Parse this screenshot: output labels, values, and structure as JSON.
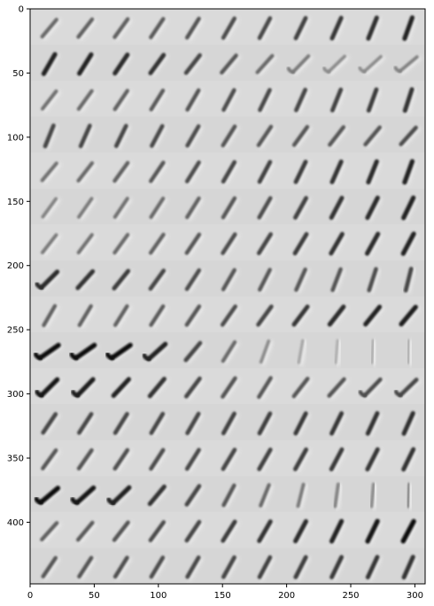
{
  "chart_data": {
    "type": "heatmap",
    "title": "",
    "xlabel": "",
    "ylabel": "",
    "xlim": [
      0,
      308
    ],
    "ylim": [
      448,
      0
    ],
    "y_axis_inverted": true,
    "x_ticks": [
      0,
      50,
      100,
      150,
      200,
      250,
      300
    ],
    "y_ticks": [
      0,
      50,
      100,
      150,
      200,
      250,
      300,
      350,
      400
    ],
    "grid": false,
    "legend": "none",
    "colormap": "gray",
    "background_color": "#d9d9d9",
    "tile_grid": {
      "rows": 16,
      "cols": 11,
      "tile_width": 28,
      "tile_height": 28
    },
    "rows": [
      {
        "dark": [
          0.5,
          0.55,
          0.55,
          0.58,
          0.62,
          0.65,
          0.68,
          0.72,
          0.78,
          0.82,
          0.88
        ],
        "tilt": [
          40,
          38,
          36,
          34,
          32,
          30,
          28,
          26,
          24,
          22,
          20
        ]
      },
      {
        "dark": [
          0.9,
          0.88,
          0.85,
          0.8,
          0.7,
          0.6,
          0.5,
          0.4,
          0.3,
          0.3,
          0.35
        ],
        "tilt": [
          30,
          32,
          34,
          36,
          38,
          40,
          42,
          44,
          46,
          48,
          50
        ]
      },
      {
        "dark": [
          0.45,
          0.5,
          0.55,
          0.58,
          0.62,
          0.65,
          0.68,
          0.7,
          0.72,
          0.75,
          0.8
        ],
        "tilt": [
          38,
          36,
          34,
          32,
          30,
          28,
          26,
          24,
          22,
          20,
          18
        ]
      },
      {
        "dark": [
          0.7,
          0.7,
          0.7,
          0.68,
          0.65,
          0.62,
          0.6,
          0.6,
          0.6,
          0.62,
          0.65
        ],
        "tilt": [
          22,
          24,
          26,
          28,
          30,
          32,
          34,
          36,
          38,
          40,
          42
        ]
      },
      {
        "dark": [
          0.45,
          0.5,
          0.55,
          0.6,
          0.65,
          0.7,
          0.72,
          0.75,
          0.8,
          0.85,
          0.9
        ],
        "tilt": [
          40,
          38,
          36,
          34,
          32,
          30,
          28,
          26,
          24,
          22,
          20
        ]
      },
      {
        "dark": [
          0.35,
          0.4,
          0.45,
          0.5,
          0.55,
          0.6,
          0.65,
          0.72,
          0.8,
          0.85,
          0.9
        ],
        "tilt": [
          36,
          35,
          34,
          33,
          32,
          31,
          30,
          29,
          28,
          27,
          26
        ]
      },
      {
        "dark": [
          0.4,
          0.45,
          0.5,
          0.55,
          0.6,
          0.65,
          0.7,
          0.75,
          0.8,
          0.85,
          0.9
        ],
        "tilt": [
          38,
          37,
          36,
          35,
          34,
          33,
          32,
          31,
          30,
          29,
          28
        ]
      },
      {
        "dark": [
          0.85,
          0.8,
          0.75,
          0.7,
          0.65,
          0.6,
          0.6,
          0.6,
          0.62,
          0.65,
          0.7
        ],
        "tilt": [
          45,
          42,
          39,
          36,
          33,
          30,
          27,
          24,
          21,
          18,
          14
        ]
      },
      {
        "dark": [
          0.55,
          0.55,
          0.55,
          0.58,
          0.6,
          0.65,
          0.7,
          0.78,
          0.85,
          0.88,
          0.92
        ],
        "tilt": [
          30,
          31,
          32,
          33,
          34,
          35,
          36,
          37,
          38,
          39,
          40
        ]
      },
      {
        "dark": [
          1.0,
          1.0,
          1.0,
          0.9,
          0.7,
          0.5,
          0.3,
          0.15,
          0.1,
          0.1,
          0.1
        ],
        "tilt": [
          55,
          55,
          55,
          48,
          40,
          32,
          20,
          10,
          5,
          3,
          2
        ]
      },
      {
        "dark": [
          0.95,
          0.92,
          0.88,
          0.8,
          0.7,
          0.62,
          0.6,
          0.6,
          0.62,
          0.65,
          0.68
        ],
        "tilt": [
          45,
          44,
          43,
          40,
          37,
          34,
          32,
          38,
          42,
          44,
          46
        ]
      },
      {
        "dark": [
          0.7,
          0.7,
          0.7,
          0.7,
          0.7,
          0.72,
          0.74,
          0.76,
          0.78,
          0.8,
          0.82
        ],
        "tilt": [
          34,
          33,
          32,
          31,
          30,
          29,
          28,
          27,
          26,
          25,
          24
        ]
      },
      {
        "dark": [
          0.6,
          0.62,
          0.64,
          0.66,
          0.68,
          0.7,
          0.72,
          0.74,
          0.76,
          0.78,
          0.8
        ],
        "tilt": [
          36,
          35,
          34,
          33,
          32,
          31,
          30,
          29,
          28,
          27,
          26
        ]
      },
      {
        "dark": [
          1.0,
          0.95,
          0.9,
          0.8,
          0.7,
          0.6,
          0.5,
          0.4,
          0.35,
          0.3,
          0.3
        ],
        "tilt": [
          50,
          48,
          46,
          40,
          34,
          28,
          22,
          14,
          8,
          5,
          3
        ]
      },
      {
        "dark": [
          0.55,
          0.58,
          0.62,
          0.66,
          0.7,
          0.75,
          0.8,
          0.85,
          0.9,
          0.95,
          1.0
        ],
        "tilt": [
          42,
          40,
          38,
          36,
          34,
          32,
          30,
          28,
          26,
          26,
          28
        ]
      },
      {
        "dark": [
          0.6,
          0.62,
          0.64,
          0.66,
          0.68,
          0.7,
          0.72,
          0.74,
          0.76,
          0.78,
          0.8
        ],
        "tilt": [
          34,
          33,
          32,
          31,
          30,
          29,
          28,
          27,
          26,
          25,
          24
        ]
      }
    ]
  }
}
